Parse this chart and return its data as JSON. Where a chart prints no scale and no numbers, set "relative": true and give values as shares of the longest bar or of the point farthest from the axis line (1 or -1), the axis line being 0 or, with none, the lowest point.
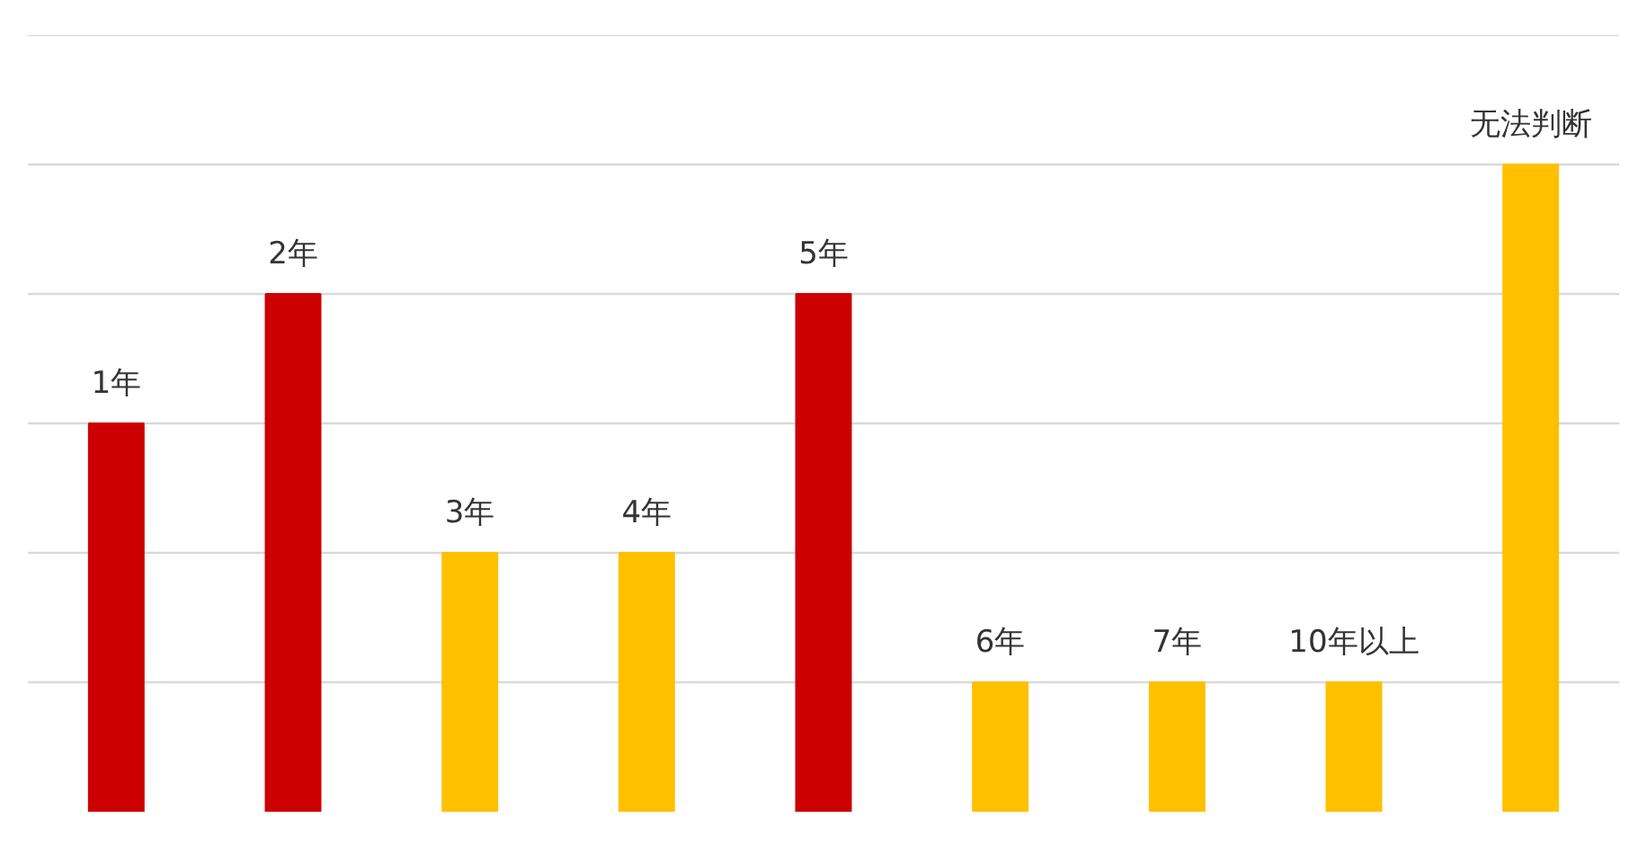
{
  "chart_data": {
    "type": "bar",
    "relative": true,
    "grid": "y",
    "data_labels": false,
    "categories": [
      "1年",
      "2年",
      "3年",
      "4年",
      "5年",
      "6年",
      "7年",
      "10年以上",
      "无法判断"
    ],
    "values": [
      0.6,
      0.8,
      0.4,
      0.4,
      0.8,
      0.2,
      0.2,
      0.2,
      1
    ],
    "colors": [
      "#cc0000",
      "#cc0000",
      "#ffc000",
      "#ffc000",
      "#cc0000",
      "#ffc000",
      "#ffc000",
      "#ffc000",
      "#ffc000"
    ]
  }
}
